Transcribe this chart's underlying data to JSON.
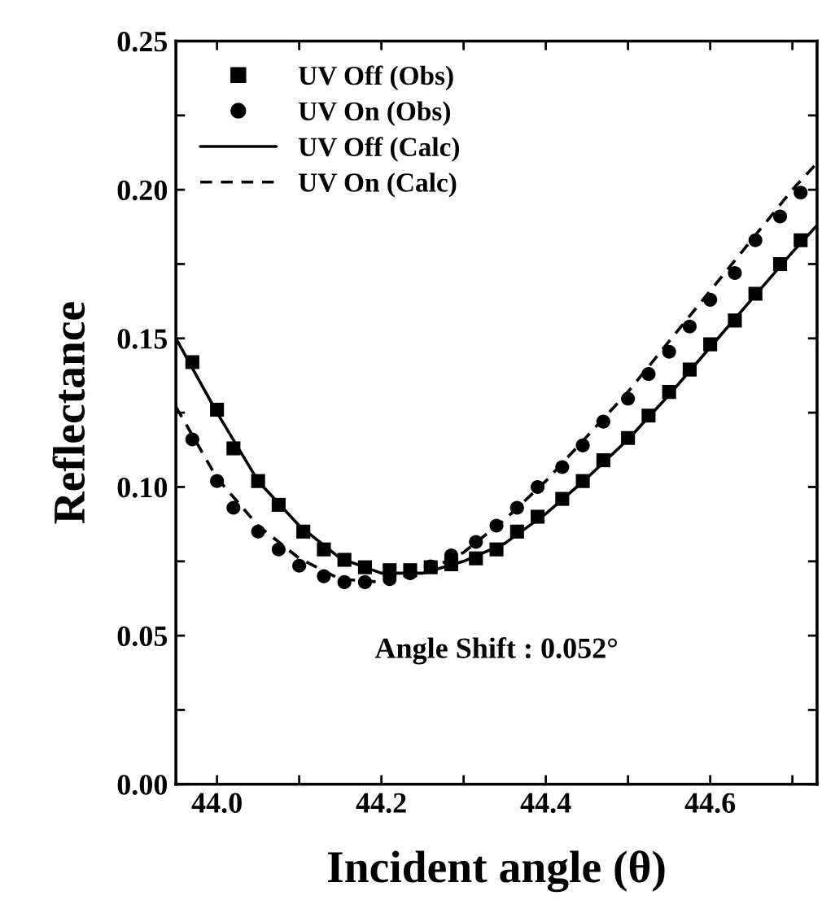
{
  "chart_data": {
    "type": "scatter",
    "xlabel": "Incident angle (θ)",
    "ylabel": "Reflectance",
    "xlim": [
      43.95,
      44.73
    ],
    "ylim": [
      0,
      0.25
    ],
    "xticks": [
      {
        "value": 44.0,
        "label": "44.0"
      },
      {
        "value": 44.1,
        "label": null
      },
      {
        "value": 44.2,
        "label": "44.2"
      },
      {
        "value": 44.3,
        "label": null
      },
      {
        "value": 44.4,
        "label": "44.4"
      },
      {
        "value": 44.5,
        "label": null
      },
      {
        "value": 44.6,
        "label": "44.6"
      },
      {
        "value": 44.7,
        "label": null
      }
    ],
    "yticks": [
      {
        "value": 0,
        "label": "0.00"
      },
      {
        "value": 0.025,
        "label": null
      },
      {
        "value": 0.05,
        "label": "0.05"
      },
      {
        "value": 0.075,
        "label": null
      },
      {
        "value": 0.1,
        "label": "0.10"
      },
      {
        "value": 0.125,
        "label": null
      },
      {
        "value": 0.15,
        "label": "0.15"
      },
      {
        "value": 0.175,
        "label": null
      },
      {
        "value": 0.2,
        "label": "0.20"
      },
      {
        "value": 0.225,
        "label": null
      },
      {
        "value": 0.25,
        "label": "0.25"
      }
    ],
    "grid": false,
    "legend": "top left",
    "annotations": [
      "Angle Shift : 0.052°"
    ],
    "series": [
      {
        "name": "UV Off (Obs)",
        "marker": "square",
        "color": "#000000",
        "x": [
          43.97,
          44.0,
          44.02,
          44.05,
          44.075,
          44.105,
          44.13,
          44.155,
          44.18,
          44.21,
          44.235,
          44.26,
          44.285,
          44.315,
          44.34,
          44.365,
          44.39,
          44.42,
          44.445,
          44.47,
          44.5,
          44.525,
          44.55,
          44.575,
          44.6,
          44.63,
          44.655,
          44.685,
          44.71
        ],
        "values": [
          0.142,
          0.126,
          0.113,
          0.102,
          0.094,
          0.085,
          0.079,
          0.0755,
          0.073,
          0.072,
          0.072,
          0.073,
          0.074,
          0.076,
          0.079,
          0.085,
          0.09,
          0.096,
          0.102,
          0.109,
          0.1165,
          0.124,
          0.132,
          0.1395,
          0.148,
          0.156,
          0.165,
          0.175,
          0.183
        ]
      },
      {
        "name": "UV On (Obs)",
        "marker": "circle",
        "color": "#000000",
        "x": [
          43.97,
          44.0,
          44.02,
          44.05,
          44.075,
          44.1,
          44.13,
          44.155,
          44.18,
          44.21,
          44.235,
          44.26,
          44.285,
          44.315,
          44.34,
          44.365,
          44.39,
          44.42,
          44.445,
          44.47,
          44.5,
          44.525,
          44.55,
          44.575,
          44.6,
          44.63,
          44.655,
          44.685,
          44.71
        ],
        "values": [
          0.116,
          0.102,
          0.093,
          0.085,
          0.079,
          0.0735,
          0.07,
          0.068,
          0.068,
          0.069,
          0.071,
          0.0733,
          0.077,
          0.0815,
          0.087,
          0.093,
          0.1,
          0.1067,
          0.114,
          0.122,
          0.1297,
          0.138,
          0.1455,
          0.154,
          0.163,
          0.172,
          0.183,
          0.191,
          0.199
        ]
      },
      {
        "name": "UV Off (Calc)",
        "type": "line",
        "marker": "none",
        "line_style": "solid",
        "color": "#000000",
        "x": [
          43.95,
          44.0,
          44.05,
          44.1,
          44.15,
          44.2,
          44.25,
          44.3,
          44.35,
          44.4,
          44.45,
          44.5,
          44.55,
          44.6,
          44.65,
          44.7,
          44.73
        ],
        "values": [
          0.15,
          0.125,
          0.102,
          0.087,
          0.076,
          0.071,
          0.071,
          0.075,
          0.081,
          0.091,
          0.103,
          0.116,
          0.131,
          0.147,
          0.163,
          0.179,
          0.188
        ]
      },
      {
        "name": "UV On (Calc)",
        "type": "line",
        "marker": "none",
        "line_style": "dashed",
        "color": "#000000",
        "x": [
          43.95,
          44.0,
          44.05,
          44.1,
          44.15,
          44.2,
          44.25,
          44.3,
          44.35,
          44.4,
          44.45,
          44.5,
          44.55,
          44.6,
          44.65,
          44.7,
          44.73
        ],
        "values": [
          0.127,
          0.103,
          0.087,
          0.076,
          0.069,
          0.068,
          0.071,
          0.078,
          0.089,
          0.102,
          0.117,
          0.132,
          0.149,
          0.166,
          0.183,
          0.2,
          0.209
        ]
      }
    ]
  }
}
